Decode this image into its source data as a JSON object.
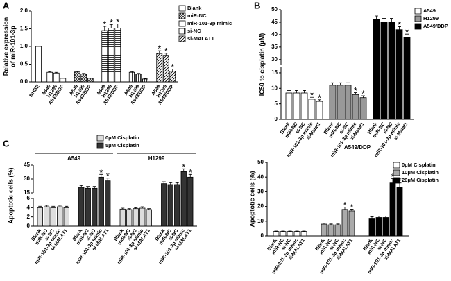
{
  "chart_data": [
    {
      "type": "bar",
      "panel": "A",
      "y_label": [
        "Relative expression",
        "of miR-101-3p"
      ],
      "ylim": [
        0,
        2
      ],
      "yticks": [
        {
          "value": 0,
          "label": "0.0"
        },
        0.5,
        {
          "value": 1,
          "label": "1.0"
        },
        1.5,
        {
          "value": 2,
          "label": "2.0"
        }
      ],
      "reference": {
        "label": "NHBE",
        "value": 1,
        "color": "#ffffff"
      },
      "categories": [
        "A549",
        "H1299",
        "A549/DDP"
      ],
      "series": [
        {
          "name": "Blank",
          "color": "#ffffff",
          "values": [
            0.27,
            0.25,
            0.1
          ],
          "errors": [
            0.02,
            0.02,
            0.01
          ]
        },
        {
          "name": "miR-NC",
          "color": "#ffffff",
          "pattern": "cross",
          "values": [
            0.28,
            0.22,
            0.1
          ],
          "errors": [
            0.02,
            0.02,
            0.01
          ]
        },
        {
          "name": "miR-101-3p mimic",
          "color": "#ffffff",
          "pattern": "horizontal",
          "values": [
            1.45,
            1.52,
            1.52
          ],
          "errors": [
            0.12,
            0.1,
            0.12
          ],
          "annotations": [
            "*",
            "*",
            "*"
          ]
        },
        {
          "name": "si-NC",
          "color": "#ffffff",
          "pattern": "vertical",
          "values": [
            0.27,
            0.22,
            0.08
          ],
          "errors": [
            0.02,
            0.02,
            0.01
          ]
        },
        {
          "name": "si-MALAT1",
          "color": "#ffffff",
          "pattern": "diagonal",
          "values": [
            0.8,
            0.75,
            0.3
          ],
          "errors": [
            0.08,
            0.06,
            0.06
          ],
          "annotations": [
            "*",
            "*",
            "*"
          ]
        }
      ]
    },
    {
      "type": "bar",
      "panel": "B",
      "y_label": [
        "IC50 to cisplatin (μM)"
      ],
      "ylim": [
        0,
        17
      ],
      "yticks": [
        0,
        5,
        10,
        15
      ],
      "upper_ylim": [
        28,
        50
      ],
      "upper_yticks": [
        30,
        35,
        40,
        45,
        50
      ],
      "categories": [
        "Blank",
        "miR-NC",
        "si-NC",
        "miR-101-3p mimic",
        "si-Malat1"
      ],
      "series": [
        {
          "name": "A549",
          "color": "#ffffff",
          "values": [
            8.5,
            8.5,
            8.5,
            6.5,
            5.8
          ],
          "errors": [
            0.8,
            0.8,
            0.8,
            0.6,
            0.5
          ],
          "annotations": [
            null,
            null,
            null,
            "*",
            "*"
          ]
        },
        {
          "name": "H1299",
          "color": "#999999",
          "values": [
            11,
            11,
            11,
            8,
            7
          ],
          "errors": [
            0.8,
            0.8,
            0.8,
            0.6,
            0.6
          ],
          "annotations": [
            null,
            null,
            null,
            "*",
            "*"
          ]
        },
        {
          "name": "A549/DDP",
          "color": "#000000",
          "values": [
            46,
            45,
            45,
            42,
            39
          ],
          "errors": [
            1.5,
            1.5,
            1.5,
            1.2,
            1.2
          ],
          "annotations": [
            null,
            null,
            null,
            "*",
            "*"
          ]
        }
      ]
    },
    {
      "type": "bar",
      "panel": "C",
      "y_label": [
        "Apoptotic cells (%)"
      ],
      "ylim": [
        0,
        6
      ],
      "yticks": [
        0,
        2,
        4,
        6
      ],
      "upper_ylim": [
        15,
        45
      ],
      "upper_yticks": [
        15,
        30,
        45
      ],
      "groups": [
        "A549",
        "H1299"
      ],
      "categories": [
        "Blank",
        "miR-NC",
        "si-NC",
        "miR-101-3p mimic",
        "si-MALAT1"
      ],
      "series": [
        {
          "name": "0μM Cisplatin",
          "color": "#dddddd",
          "values": [
            [
              4.0,
              4.2,
              4.0,
              4.2,
              4.0
            ],
            [
              3.7,
              3.6,
              3.8,
              3.9,
              3.6
            ]
          ],
          "errors": [
            [
              0.3,
              0.3,
              0.3,
              0.3,
              0.3
            ],
            [
              0.2,
              0.2,
              0.2,
              0.3,
              0.2
            ]
          ]
        },
        {
          "name": "5μM Cisplatin",
          "color": "#333333",
          "values": [
            [
              21,
              20,
              20,
              32,
              28
            ],
            [
              25,
              24,
              24,
              38,
              32
            ]
          ],
          "errors": [
            [
              2,
              2,
              2,
              3,
              3
            ],
            [
              2,
              2,
              2,
              3,
              3
            ]
          ],
          "annotations": [
            [
              null,
              null,
              null,
              "*",
              "*"
            ],
            [
              null,
              null,
              null,
              "*",
              "*"
            ]
          ]
        }
      ]
    },
    {
      "type": "bar",
      "title": "A549/DDP",
      "y_label": [
        "Apoptotic cells (%)"
      ],
      "ylim": [
        0,
        50
      ],
      "yticks": [
        0,
        10,
        20,
        30,
        40,
        50
      ],
      "categories": [
        "Blank",
        "miR-NC",
        "si-NC",
        "miR-101-3p mimic",
        "si-MALAT1"
      ],
      "series": [
        {
          "name": "0μM Cisplatin",
          "color": "#ffffff",
          "values": [
            3,
            3,
            3,
            3,
            3
          ],
          "errors": [
            0.3,
            0.3,
            0.3,
            0.3,
            0.3
          ]
        },
        {
          "name": "10μM Cisplatin",
          "color": "#aaaaaa",
          "values": [
            8,
            7.5,
            7.5,
            18,
            17
          ],
          "errors": [
            0.8,
            0.6,
            0.6,
            1.5,
            1.2
          ],
          "annotations": [
            null,
            null,
            null,
            "*",
            "*"
          ]
        },
        {
          "name": "20μM Cisplatin",
          "color": "#000000",
          "values": [
            12,
            12.5,
            12.5,
            36,
            33
          ],
          "errors": [
            1,
            1,
            1,
            3,
            3
          ],
          "annotations": [
            null,
            null,
            null,
            "*",
            "*"
          ]
        }
      ]
    }
  ]
}
